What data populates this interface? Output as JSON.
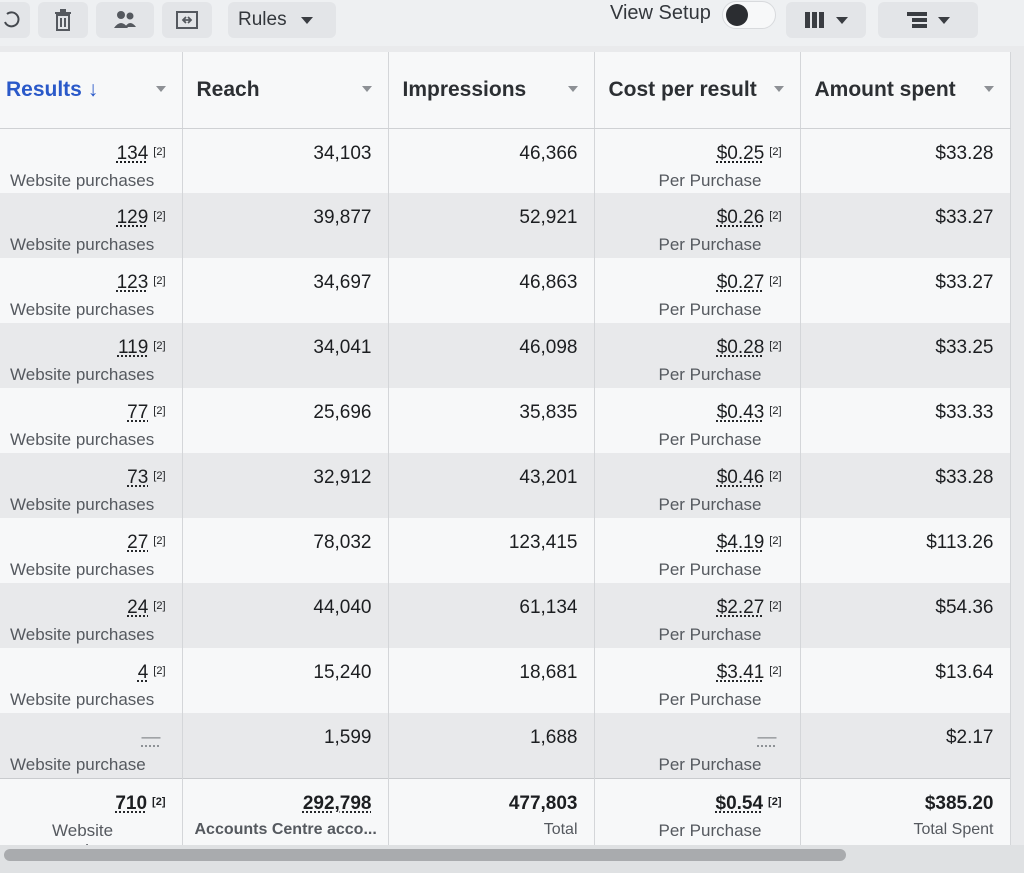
{
  "toolbar": {
    "rules_label": "Rules",
    "view_setup_label": "View Setup",
    "view_setup_on": false,
    "icons": [
      "undo-icon",
      "trash-icon",
      "people-icon",
      "share-icon",
      "columns-icon",
      "breakdown-icon"
    ]
  },
  "table": {
    "columns": [
      {
        "label": "Results ↓",
        "sorted": true
      },
      {
        "label": "Reach"
      },
      {
        "label": "Impressions"
      },
      {
        "label": "Cost per result"
      },
      {
        "label": "Amount spent"
      }
    ],
    "rows": [
      {
        "results": "134",
        "results_sup": "[2]",
        "results_sub": "Website purchases",
        "reach": "34,103",
        "impressions": "46,366",
        "cpr": "$0.25",
        "cpr_sup": "[2]",
        "cpr_sub": "Per Purchase",
        "spent": "$33.28"
      },
      {
        "results": "129",
        "results_sup": "[2]",
        "results_sub": "Website purchases",
        "reach": "39,877",
        "impressions": "52,921",
        "cpr": "$0.26",
        "cpr_sup": "[2]",
        "cpr_sub": "Per Purchase",
        "spent": "$33.27"
      },
      {
        "results": "123",
        "results_sup": "[2]",
        "results_sub": "Website purchases",
        "reach": "34,697",
        "impressions": "46,863",
        "cpr": "$0.27",
        "cpr_sup": "[2]",
        "cpr_sub": "Per Purchase",
        "spent": "$33.27"
      },
      {
        "results": "119",
        "results_sup": "[2]",
        "results_sub": "Website purchases",
        "reach": "34,041",
        "impressions": "46,098",
        "cpr": "$0.28",
        "cpr_sup": "[2]",
        "cpr_sub": "Per Purchase",
        "spent": "$33.25"
      },
      {
        "results": "77",
        "results_sup": "[2]",
        "results_sub": "Website purchases",
        "reach": "25,696",
        "impressions": "35,835",
        "cpr": "$0.43",
        "cpr_sup": "[2]",
        "cpr_sub": "Per Purchase",
        "spent": "$33.33"
      },
      {
        "results": "73",
        "results_sup": "[2]",
        "results_sub": "Website purchases",
        "reach": "32,912",
        "impressions": "43,201",
        "cpr": "$0.46",
        "cpr_sup": "[2]",
        "cpr_sub": "Per Purchase",
        "spent": "$33.28"
      },
      {
        "results": "27",
        "results_sup": "[2]",
        "results_sub": "Website purchases",
        "reach": "78,032",
        "impressions": "123,415",
        "cpr": "$4.19",
        "cpr_sup": "[2]",
        "cpr_sub": "Per Purchase",
        "spent": "$113.26"
      },
      {
        "results": "24",
        "results_sup": "[2]",
        "results_sub": "Website purchases",
        "reach": "44,040",
        "impressions": "61,134",
        "cpr": "$2.27",
        "cpr_sup": "[2]",
        "cpr_sub": "Per Purchase",
        "spent": "$54.36"
      },
      {
        "results": "4",
        "results_sup": "[2]",
        "results_sub": "Website purchases",
        "reach": "15,240",
        "impressions": "18,681",
        "cpr": "$3.41",
        "cpr_sup": "[2]",
        "cpr_sub": "Per Purchase",
        "spent": "$13.64"
      },
      {
        "results": "—",
        "results_sup": "",
        "results_sub": "Website purchase",
        "reach": "1,599",
        "impressions": "1,688",
        "cpr": "—",
        "cpr_sup": "",
        "cpr_sub": "Per Purchase",
        "spent": "$2.17"
      }
    ],
    "total": {
      "results": "710",
      "results_sup": "[2]",
      "results_sub": "Website purchases",
      "reach": "292,798",
      "reach_sub": "Accounts Centre acco...",
      "impressions": "477,803",
      "impressions_sub": "Total",
      "cpr": "$0.54",
      "cpr_sup": "[2]",
      "cpr_sub": "Per Purchase",
      "spent": "$385.20",
      "spent_sub": "Total Spent"
    }
  }
}
